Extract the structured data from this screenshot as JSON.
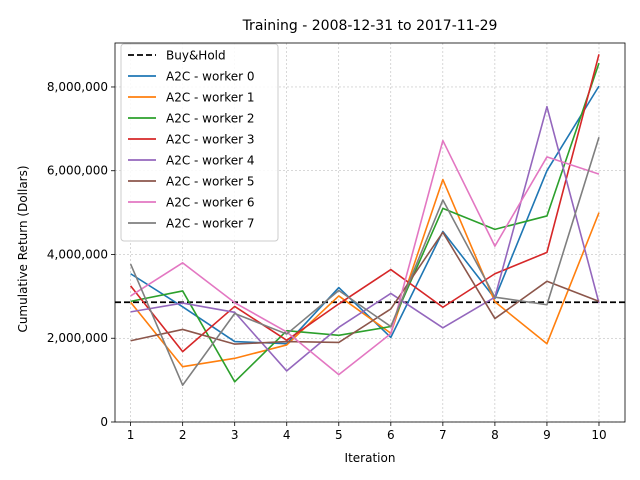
{
  "chart_data": {
    "type": "line",
    "title": "Training - 2008-12-31 to 2017-11-29",
    "xlabel": "Iteration",
    "ylabel": "Cumulative Return (Dollars)",
    "x": [
      1,
      2,
      3,
      4,
      5,
      6,
      7,
      8,
      9,
      10
    ],
    "xlim": [
      0.7,
      10.5
    ],
    "ylim": [
      0,
      9050000
    ],
    "yticks": [
      0,
      2000000,
      4000000,
      6000000,
      8000000
    ],
    "ytick_labels": [
      "0",
      "2,000,000",
      "4,000,000",
      "6,000,000",
      "8,000,000"
    ],
    "xtick_labels": [
      "1",
      "2",
      "3",
      "4",
      "5",
      "6",
      "7",
      "8",
      "9",
      "10"
    ],
    "grid": true,
    "legend_position": "upper-left",
    "baseline": {
      "name": "Buy&Hold",
      "value": 2860000,
      "color": "#000000",
      "style": "dashed"
    },
    "series": [
      {
        "name": "A2C - worker 0",
        "color": "#1f77b4",
        "values": [
          3540000,
          2750000,
          1920000,
          1870000,
          3210000,
          2020000,
          4550000,
          2950000,
          6000000,
          8020000
        ]
      },
      {
        "name": "A2C - worker 1",
        "color": "#ff7f0e",
        "values": [
          2860000,
          1320000,
          1520000,
          1840000,
          3010000,
          2120000,
          5790000,
          2870000,
          1870000,
          5000000
        ]
      },
      {
        "name": "A2C - worker 2",
        "color": "#2ca02c",
        "values": [
          2880000,
          3130000,
          960000,
          2180000,
          2070000,
          2280000,
          5100000,
          4600000,
          4920000,
          8570000
        ]
      },
      {
        "name": "A2C - worker 3",
        "color": "#d62728",
        "values": [
          3250000,
          1680000,
          2760000,
          1950000,
          2820000,
          3640000,
          2740000,
          3540000,
          4050000,
          8780000
        ]
      },
      {
        "name": "A2C - worker 4",
        "color": "#9467bd",
        "values": [
          2630000,
          2840000,
          2620000,
          1220000,
          2260000,
          3070000,
          2250000,
          2980000,
          7530000,
          2840000
        ]
      },
      {
        "name": "A2C - worker 5",
        "color": "#8c564b",
        "values": [
          1940000,
          2210000,
          1860000,
          1920000,
          1900000,
          2700000,
          4530000,
          2470000,
          3360000,
          2880000
        ]
      },
      {
        "name": "A2C - worker 6",
        "color": "#e377c2",
        "values": [
          3010000,
          3800000,
          2850000,
          2150000,
          1130000,
          2110000,
          6720000,
          4200000,
          6330000,
          5920000
        ]
      },
      {
        "name": "A2C - worker 7",
        "color": "#7f7f7f",
        "values": [
          3770000,
          880000,
          2590000,
          2100000,
          3140000,
          2280000,
          5300000,
          2980000,
          2800000,
          6800000
        ]
      }
    ]
  }
}
